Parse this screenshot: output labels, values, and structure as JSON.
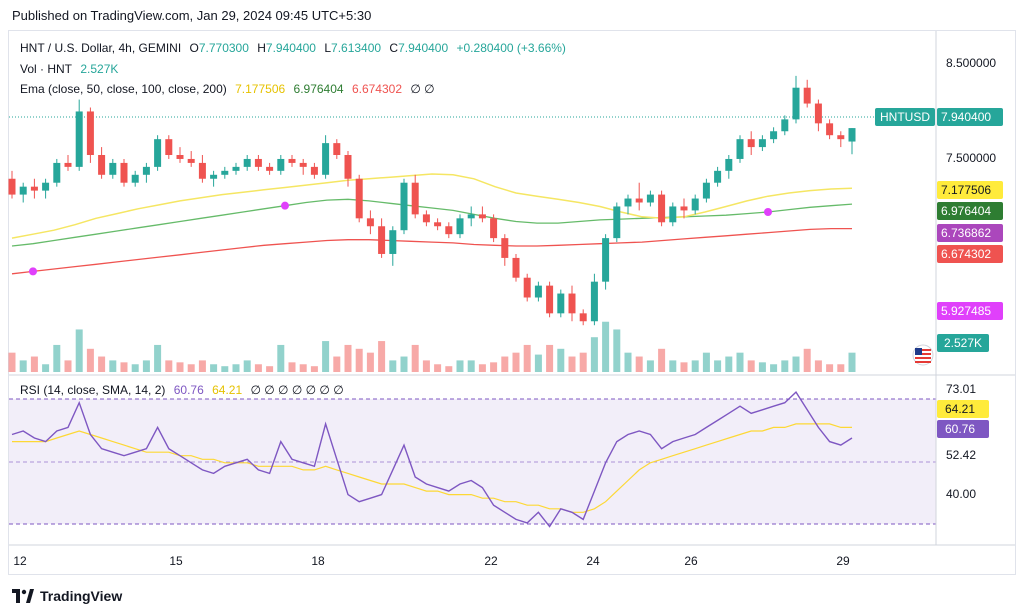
{
  "header": {
    "published": "Published on TradingView.com, Jan 29, 2024 09:45 UTC+5:30"
  },
  "legend": {
    "symbol": "HNT / U.S. Dollar, 4h, GEMINI",
    "open_label": "O",
    "open": "7.770300",
    "high_label": "H",
    "high": "7.940400",
    "low_label": "L",
    "low": "7.613400",
    "close_label": "C",
    "close": "7.940400",
    "change": "+0.280400 (+3.66%)",
    "vol_label": "Vol · HNT",
    "vol": "2.527K",
    "ema_label": "Ema (close, 50, close, 100, close, 200)",
    "ema50": "7.177506",
    "ema100": "6.976404",
    "ema200": "6.674302",
    "ema_tail": "∅ ∅",
    "rsi_label": "RSI (14, close, SMA, 14, 2)",
    "rsi": "60.76",
    "rsi_ma": "64.21",
    "rsi_tail": "∅ ∅ ∅ ∅ ∅ ∅ ∅"
  },
  "price_axis": {
    "ticks": [
      "8.500000",
      "7.500000"
    ],
    "tags": [
      {
        "label": "HNTUSD",
        "value": "7.940400",
        "color": "#26a69a"
      },
      {
        "value": "7.177506",
        "color": "#ffeb3b",
        "text_color": "#131722"
      },
      {
        "value": "6.976404",
        "color": "#2e7d32"
      },
      {
        "value": "6.736862",
        "color": "#ab47bc"
      },
      {
        "value": "6.674302",
        "color": "#ef5350"
      },
      {
        "value": "5.927485",
        "color": "#e040fb"
      },
      {
        "value": "2.527K",
        "color": "#26a69a"
      }
    ]
  },
  "rsi_axis": {
    "ticks": [
      "73.01",
      "52.42",
      "40.00"
    ],
    "tags": [
      {
        "value": "64.21",
        "color": "#ffeb3b",
        "text_color": "#131722"
      },
      {
        "value": "60.76",
        "color": "#7e57c2"
      }
    ]
  },
  "time_axis": {
    "labels": [
      "12",
      "15",
      "18",
      "22",
      "24",
      "26",
      "29"
    ]
  },
  "brand": {
    "name": "TradingView"
  },
  "colors": {
    "up": "#26a69a",
    "down": "#ef5350",
    "ema50": "#f5e663",
    "ema100": "#66bb6a",
    "ema200": "#ef5350",
    "rsi": "#7e57c2",
    "rsi_ma": "#fdd835",
    "cross": "#e040fb"
  },
  "chart_data": {
    "type": "candlestick",
    "title": "HNT / U.S. Dollar, 4h, GEMINI",
    "x_labels": [
      "12",
      "15",
      "18",
      "22",
      "24",
      "26",
      "29"
    ],
    "ylim": [
      5.2,
      8.8
    ],
    "price_ohlc": [
      [
        7.3,
        7.4,
        7.05,
        7.1
      ],
      [
        7.1,
        7.25,
        7.0,
        7.2
      ],
      [
        7.2,
        7.3,
        7.05,
        7.15
      ],
      [
        7.15,
        7.3,
        7.05,
        7.25
      ],
      [
        7.25,
        7.55,
        7.2,
        7.5
      ],
      [
        7.5,
        7.6,
        7.4,
        7.45
      ],
      [
        7.45,
        8.3,
        7.4,
        8.15
      ],
      [
        8.15,
        8.2,
        7.5,
        7.6
      ],
      [
        7.6,
        7.7,
        7.3,
        7.35
      ],
      [
        7.35,
        7.55,
        7.3,
        7.5
      ],
      [
        7.5,
        7.55,
        7.2,
        7.25
      ],
      [
        7.25,
        7.4,
        7.2,
        7.35
      ],
      [
        7.35,
        7.5,
        7.25,
        7.45
      ],
      [
        7.45,
        7.85,
        7.4,
        7.8
      ],
      [
        7.8,
        7.85,
        7.55,
        7.6
      ],
      [
        7.6,
        7.7,
        7.5,
        7.55
      ],
      [
        7.55,
        7.65,
        7.45,
        7.5
      ],
      [
        7.5,
        7.6,
        7.25,
        7.3
      ],
      [
        7.3,
        7.4,
        7.2,
        7.35
      ],
      [
        7.35,
        7.45,
        7.3,
        7.4
      ],
      [
        7.4,
        7.5,
        7.35,
        7.45
      ],
      [
        7.45,
        7.6,
        7.4,
        7.55
      ],
      [
        7.55,
        7.6,
        7.4,
        7.45
      ],
      [
        7.45,
        7.5,
        7.35,
        7.4
      ],
      [
        7.4,
        7.6,
        7.35,
        7.55
      ],
      [
        7.55,
        7.6,
        7.45,
        7.5
      ],
      [
        7.5,
        7.55,
        7.35,
        7.45
      ],
      [
        7.45,
        7.5,
        7.3,
        7.35
      ],
      [
        7.35,
        7.85,
        7.3,
        7.75
      ],
      [
        7.75,
        7.8,
        7.55,
        7.6
      ],
      [
        7.6,
        7.65,
        7.2,
        7.3
      ],
      [
        7.3,
        7.35,
        6.75,
        6.8
      ],
      [
        6.8,
        6.9,
        6.6,
        6.7
      ],
      [
        6.7,
        6.8,
        6.3,
        6.35
      ],
      [
        6.35,
        6.7,
        6.2,
        6.65
      ],
      [
        6.65,
        7.3,
        6.6,
        7.25
      ],
      [
        7.25,
        7.35,
        6.8,
        6.85
      ],
      [
        6.85,
        6.9,
        6.7,
        6.75
      ],
      [
        6.75,
        6.8,
        6.65,
        6.7
      ],
      [
        6.7,
        6.75,
        6.55,
        6.6
      ],
      [
        6.6,
        6.85,
        6.55,
        6.8
      ],
      [
        6.8,
        6.95,
        6.7,
        6.85
      ],
      [
        6.85,
        6.95,
        6.75,
        6.8
      ],
      [
        6.8,
        6.85,
        6.5,
        6.55
      ],
      [
        6.55,
        6.6,
        6.2,
        6.3
      ],
      [
        6.3,
        6.35,
        6.0,
        6.05
      ],
      [
        6.05,
        6.1,
        5.75,
        5.8
      ],
      [
        5.8,
        6.0,
        5.75,
        5.95
      ],
      [
        5.95,
        6.0,
        5.55,
        5.6
      ],
      [
        5.6,
        5.9,
        5.55,
        5.85
      ],
      [
        5.85,
        5.95,
        5.5,
        5.6
      ],
      [
        5.6,
        5.65,
        5.45,
        5.5
      ],
      [
        5.5,
        6.1,
        5.45,
        6.0
      ],
      [
        6.0,
        6.6,
        5.9,
        6.55
      ],
      [
        6.55,
        7.0,
        6.5,
        6.95
      ],
      [
        6.95,
        7.1,
        6.85,
        7.05
      ],
      [
        7.05,
        7.25,
        6.9,
        7.0
      ],
      [
        7.0,
        7.15,
        6.95,
        7.1
      ],
      [
        7.1,
        7.15,
        6.7,
        6.75
      ],
      [
        6.75,
        7.0,
        6.7,
        6.95
      ],
      [
        6.95,
        7.05,
        6.8,
        6.9
      ],
      [
        6.9,
        7.1,
        6.85,
        7.05
      ],
      [
        7.05,
        7.3,
        7.0,
        7.25
      ],
      [
        7.25,
        7.45,
        7.2,
        7.4
      ],
      [
        7.4,
        7.6,
        7.3,
        7.55
      ],
      [
        7.55,
        7.85,
        7.5,
        7.8
      ],
      [
        7.8,
        7.9,
        7.6,
        7.7
      ],
      [
        7.7,
        7.85,
        7.65,
        7.8
      ],
      [
        7.8,
        7.95,
        7.75,
        7.9
      ],
      [
        7.9,
        8.1,
        7.85,
        8.05
      ],
      [
        8.05,
        8.6,
        8.0,
        8.45
      ],
      [
        8.45,
        8.55,
        8.2,
        8.25
      ],
      [
        8.25,
        8.3,
        7.9,
        8.0
      ],
      [
        8.0,
        8.05,
        7.8,
        7.85
      ],
      [
        7.85,
        7.9,
        7.7,
        7.8
      ],
      [
        7.77,
        7.94,
        7.61,
        7.94
      ]
    ],
    "ema50": [
      6.55,
      6.6,
      6.65,
      6.72,
      6.8,
      6.86,
      6.92,
      6.97,
      7.02,
      7.06,
      7.1,
      7.13,
      7.16,
      7.19,
      7.22,
      7.25,
      7.28,
      7.3,
      7.32,
      7.34,
      7.36,
      7.35,
      7.3,
      7.2,
      7.12,
      7.08,
      7.04,
      7.0,
      6.95,
      6.88,
      6.82,
      6.8,
      6.82,
      6.88,
      6.95,
      7.02,
      7.08,
      7.12,
      7.15,
      7.17,
      7.18
    ],
    "ema100": [
      6.45,
      6.48,
      6.52,
      6.56,
      6.6,
      6.64,
      6.68,
      6.72,
      6.76,
      6.8,
      6.84,
      6.88,
      6.92,
      6.96,
      7.0,
      7.03,
      7.04,
      7.02,
      6.99,
      6.96,
      6.93,
      6.9,
      6.85,
      6.8,
      6.76,
      6.74,
      6.74,
      6.76,
      6.78,
      6.79,
      6.8,
      6.81,
      6.82,
      6.83,
      6.84,
      6.86,
      6.88,
      6.91,
      6.94,
      6.96,
      6.98
    ],
    "ema200": [
      6.1,
      6.13,
      6.16,
      6.19,
      6.22,
      6.25,
      6.28,
      6.31,
      6.34,
      6.37,
      6.4,
      6.43,
      6.46,
      6.48,
      6.5,
      6.52,
      6.53,
      6.53,
      6.52,
      6.51,
      6.5,
      6.49,
      6.47,
      6.46,
      6.45,
      6.45,
      6.46,
      6.47,
      6.48,
      6.49,
      6.5,
      6.52,
      6.54,
      6.56,
      6.58,
      6.6,
      6.62,
      6.64,
      6.66,
      6.67,
      6.67
    ],
    "volume": [
      10,
      6,
      8,
      4,
      14,
      6,
      22,
      12,
      8,
      6,
      5,
      4,
      6,
      14,
      6,
      5,
      4,
      6,
      4,
      3,
      4,
      6,
      4,
      3,
      14,
      5,
      4,
      3,
      16,
      8,
      14,
      12,
      10,
      16,
      6,
      8,
      14,
      6,
      4,
      3,
      6,
      6,
      4,
      5,
      8,
      10,
      14,
      9,
      14,
      12,
      8,
      10,
      18,
      26,
      22,
      10,
      8,
      6,
      12,
      6,
      5,
      6,
      10,
      6,
      8,
      10,
      6,
      5,
      4,
      6,
      8,
      12,
      6,
      4,
      4,
      10
    ],
    "volume_max": 30,
    "rsi_ylim": [
      35,
      76
    ],
    "rsi": [
      62,
      63,
      61,
      60,
      63,
      64,
      71,
      62,
      58,
      57,
      56,
      57,
      58,
      64,
      58,
      56,
      54,
      52,
      51,
      53,
      54,
      55,
      52,
      51,
      60,
      55,
      54,
      53,
      65,
      55,
      45,
      43,
      44,
      45,
      52,
      59,
      50,
      48,
      47,
      46,
      48,
      49,
      47,
      42,
      40,
      38,
      37,
      40,
      36,
      41,
      40,
      38,
      46,
      54,
      60,
      62,
      63,
      62,
      58,
      60,
      61,
      62,
      64,
      66,
      68,
      70,
      68,
      69,
      70,
      71,
      74,
      69,
      64,
      60,
      59,
      61
    ],
    "rsi_ma": [
      60,
      60,
      60,
      60,
      61,
      62,
      63,
      62,
      61,
      60,
      59,
      58,
      57,
      57,
      57,
      56,
      56,
      55,
      55,
      54,
      54,
      54,
      53,
      53,
      53,
      53,
      52,
      52,
      53,
      52,
      51,
      50,
      49,
      48,
      48,
      48,
      47,
      46,
      46,
      45,
      45,
      45,
      44,
      44,
      43,
      43,
      42,
      42,
      41,
      41,
      40,
      40,
      41,
      43,
      46,
      49,
      52,
      54,
      55,
      56,
      57,
      58,
      59,
      60,
      61,
      62,
      63,
      63,
      64,
      64,
      65,
      65,
      65,
      65,
      64,
      64
    ]
  }
}
